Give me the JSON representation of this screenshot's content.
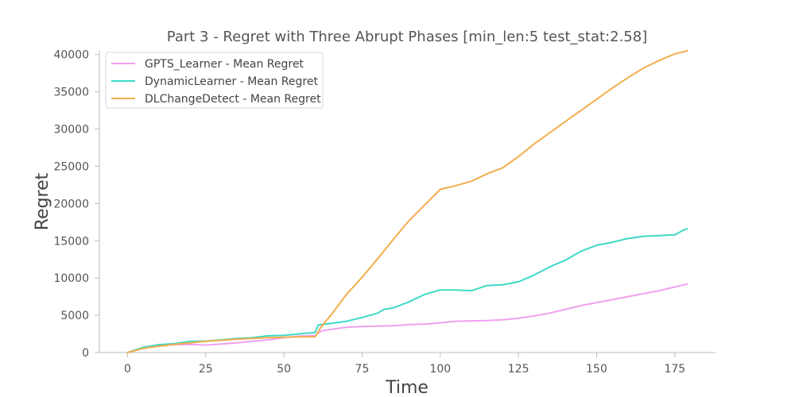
{
  "chart_data": {
    "type": "line",
    "title": "Part 3 - Regret with Three Abrupt Phases [min_len:5 test_stat:2.58]",
    "xlabel": "Time",
    "ylabel": "Regret",
    "xlim": [
      -9,
      188
    ],
    "ylim": [
      0,
      40500
    ],
    "xticks": [
      0,
      25,
      50,
      75,
      100,
      125,
      150,
      175
    ],
    "yticks": [
      0,
      5000,
      10000,
      15000,
      20000,
      25000,
      30000,
      35000,
      40000
    ],
    "grid": false,
    "legend_position": "top-left",
    "series": [
      {
        "name": "GPTS_Learner - Mean Regret",
        "color": "#f0a0ef",
        "x": [
          0,
          5,
          10,
          15,
          20,
          25,
          30,
          35,
          40,
          45,
          50,
          55,
          60,
          62,
          65,
          70,
          75,
          80,
          85,
          90,
          95,
          100,
          105,
          110,
          115,
          120,
          125,
          130,
          135,
          140,
          145,
          150,
          155,
          160,
          165,
          170,
          175,
          179
        ],
        "y": [
          0,
          600,
          900,
          1050,
          1100,
          1000,
          1150,
          1300,
          1500,
          1700,
          2000,
          2200,
          2300,
          2900,
          3100,
          3400,
          3500,
          3550,
          3600,
          3750,
          3800,
          4000,
          4200,
          4250,
          4300,
          4400,
          4600,
          4900,
          5300,
          5800,
          6300,
          6700,
          7100,
          7500,
          7900,
          8300,
          8800,
          9200
        ]
      },
      {
        "name": "DynamicLearner - Mean Regret",
        "color": "#40d9c6",
        "x": [
          0,
          5,
          10,
          15,
          20,
          25,
          30,
          35,
          40,
          45,
          50,
          55,
          60,
          61,
          65,
          70,
          75,
          80,
          82,
          85,
          90,
          95,
          100,
          105,
          110,
          115,
          120,
          125,
          130,
          135,
          140,
          145,
          150,
          155,
          160,
          165,
          170,
          175,
          178,
          179
        ],
        "y": [
          0,
          700,
          1050,
          1200,
          1500,
          1550,
          1700,
          1900,
          2000,
          2250,
          2300,
          2500,
          2700,
          3700,
          3900,
          4200,
          4700,
          5300,
          5800,
          6000,
          6800,
          7800,
          8400,
          8400,
          8300,
          9000,
          9100,
          9500,
          10400,
          11500,
          12400,
          13600,
          14400,
          14800,
          15300,
          15600,
          15700,
          15800,
          16500,
          16600
        ]
      },
      {
        "name": "DLChangeDetect - Mean Regret",
        "color": "#f2ae4e",
        "x": [
          0,
          5,
          10,
          15,
          20,
          25,
          30,
          35,
          40,
          45,
          50,
          55,
          60,
          62,
          65,
          70,
          75,
          80,
          85,
          90,
          95,
          100,
          101,
          105,
          110,
          115,
          120,
          125,
          130,
          135,
          140,
          145,
          150,
          155,
          160,
          165,
          170,
          175,
          179
        ],
        "y": [
          0,
          550,
          850,
          1100,
          1300,
          1500,
          1650,
          1800,
          1900,
          2000,
          2050,
          2100,
          2100,
          3500,
          5000,
          7800,
          10100,
          12600,
          15200,
          17700,
          19800,
          21900,
          22000,
          22400,
          23000,
          24000,
          24800,
          26300,
          28000,
          29500,
          31000,
          32500,
          34000,
          35500,
          36900,
          38200,
          39200,
          40100,
          40500
        ]
      }
    ]
  }
}
